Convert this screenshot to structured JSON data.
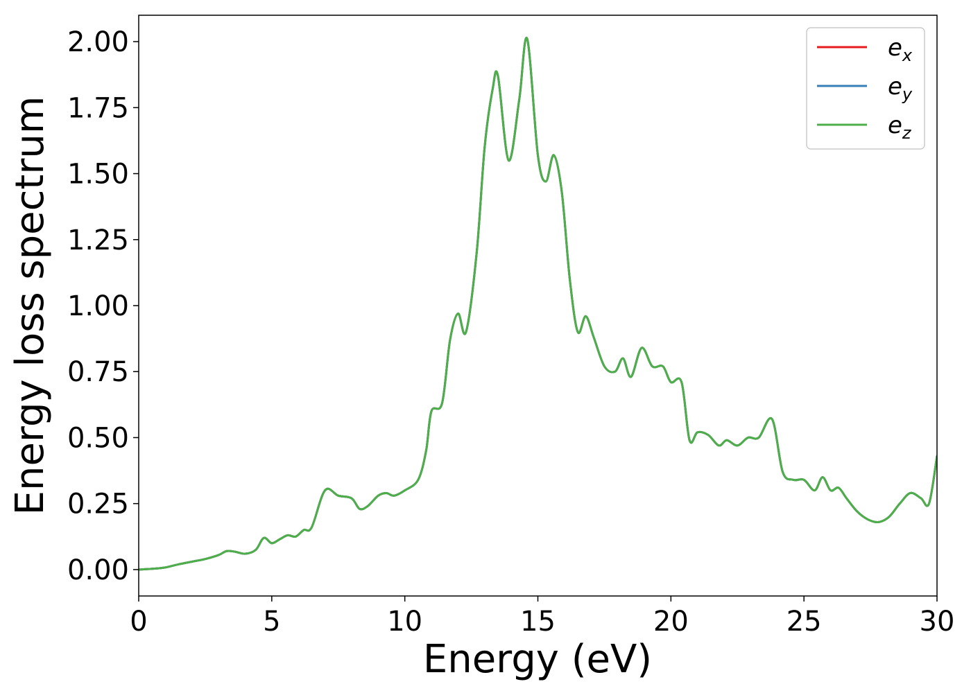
{
  "chart_data": {
    "type": "line",
    "title": "",
    "xlabel": "Energy (eV)",
    "ylabel": "Energy loss spectrum",
    "xlim": [
      0,
      30
    ],
    "ylim": [
      -0.1,
      2.1
    ],
    "xticks": [
      0,
      5,
      10,
      15,
      20,
      25,
      30
    ],
    "xtick_labels": [
      "0",
      "5",
      "10",
      "15",
      "20",
      "25",
      "30"
    ],
    "yticks": [
      0.0,
      0.25,
      0.5,
      0.75,
      1.0,
      1.25,
      1.5,
      1.75,
      2.0
    ],
    "ytick_labels": [
      "0.00",
      "0.25",
      "0.50",
      "0.75",
      "1.00",
      "1.25",
      "1.50",
      "1.75",
      "2.00"
    ],
    "grid": false,
    "legend_position": "top-right",
    "x": [
      0,
      0.5,
      1.0,
      1.5,
      2.0,
      2.5,
      3.0,
      3.3,
      3.6,
      4.0,
      4.4,
      4.7,
      5.0,
      5.3,
      5.6,
      5.9,
      6.2,
      6.5,
      7.0,
      7.5,
      8.0,
      8.3,
      8.6,
      9.0,
      9.3,
      9.6,
      10.0,
      10.5,
      10.8,
      11.0,
      11.4,
      11.7,
      12.0,
      12.3,
      12.7,
      13.0,
      13.3,
      13.5,
      13.9,
      14.3,
      14.6,
      15.0,
      15.3,
      15.6,
      15.9,
      16.2,
      16.5,
      16.8,
      17.1,
      17.5,
      17.9,
      18.2,
      18.5,
      18.9,
      19.3,
      19.7,
      20.0,
      20.4,
      20.7,
      21.0,
      21.4,
      21.8,
      22.1,
      22.5,
      22.9,
      23.3,
      23.8,
      24.2,
      24.6,
      25.0,
      25.4,
      25.7,
      26.0,
      26.3,
      26.6,
      27.0,
      27.4,
      27.8,
      28.2,
      28.6,
      29.0,
      29.4,
      29.7,
      30.0
    ],
    "series": [
      {
        "name": "e_x",
        "color": "#e41a1c",
        "y": [
          0.0,
          0.003,
          0.008,
          0.02,
          0.03,
          0.04,
          0.055,
          0.07,
          0.068,
          0.06,
          0.075,
          0.12,
          0.1,
          0.115,
          0.13,
          0.125,
          0.15,
          0.16,
          0.3,
          0.28,
          0.27,
          0.23,
          0.24,
          0.28,
          0.29,
          0.28,
          0.3,
          0.34,
          0.45,
          0.6,
          0.63,
          0.87,
          0.97,
          0.9,
          1.2,
          1.6,
          1.82,
          1.87,
          1.55,
          1.78,
          2.01,
          1.57,
          1.47,
          1.57,
          1.43,
          1.1,
          0.9,
          0.96,
          0.88,
          0.77,
          0.75,
          0.8,
          0.73,
          0.84,
          0.77,
          0.77,
          0.71,
          0.71,
          0.49,
          0.52,
          0.51,
          0.47,
          0.49,
          0.47,
          0.5,
          0.5,
          0.57,
          0.37,
          0.34,
          0.34,
          0.3,
          0.35,
          0.3,
          0.31,
          0.27,
          0.22,
          0.19,
          0.18,
          0.2,
          0.25,
          0.29,
          0.27,
          0.25,
          0.43
        ]
      },
      {
        "name": "e_y",
        "color": "#377eb8",
        "y": [
          0.0,
          0.003,
          0.008,
          0.02,
          0.03,
          0.04,
          0.055,
          0.07,
          0.068,
          0.06,
          0.075,
          0.12,
          0.1,
          0.115,
          0.13,
          0.125,
          0.15,
          0.16,
          0.3,
          0.28,
          0.27,
          0.23,
          0.24,
          0.28,
          0.29,
          0.28,
          0.3,
          0.34,
          0.45,
          0.6,
          0.63,
          0.87,
          0.97,
          0.9,
          1.2,
          1.6,
          1.82,
          1.87,
          1.55,
          1.78,
          2.01,
          1.57,
          1.47,
          1.57,
          1.43,
          1.1,
          0.9,
          0.96,
          0.88,
          0.77,
          0.75,
          0.8,
          0.73,
          0.84,
          0.77,
          0.77,
          0.71,
          0.71,
          0.49,
          0.52,
          0.51,
          0.47,
          0.49,
          0.47,
          0.5,
          0.5,
          0.57,
          0.37,
          0.34,
          0.34,
          0.3,
          0.35,
          0.3,
          0.31,
          0.27,
          0.22,
          0.19,
          0.18,
          0.2,
          0.25,
          0.29,
          0.27,
          0.25,
          0.43
        ]
      },
      {
        "name": "e_z",
        "color": "#4daf4a",
        "y": [
          0.0,
          0.003,
          0.008,
          0.02,
          0.03,
          0.04,
          0.055,
          0.07,
          0.068,
          0.06,
          0.075,
          0.12,
          0.1,
          0.115,
          0.13,
          0.125,
          0.15,
          0.16,
          0.3,
          0.28,
          0.27,
          0.23,
          0.24,
          0.28,
          0.29,
          0.28,
          0.3,
          0.34,
          0.45,
          0.6,
          0.63,
          0.87,
          0.97,
          0.9,
          1.2,
          1.6,
          1.82,
          1.87,
          1.55,
          1.78,
          2.01,
          1.57,
          1.47,
          1.57,
          1.43,
          1.1,
          0.9,
          0.96,
          0.88,
          0.77,
          0.75,
          0.8,
          0.73,
          0.84,
          0.77,
          0.77,
          0.71,
          0.71,
          0.49,
          0.52,
          0.51,
          0.47,
          0.49,
          0.47,
          0.5,
          0.5,
          0.57,
          0.37,
          0.34,
          0.34,
          0.3,
          0.35,
          0.3,
          0.31,
          0.27,
          0.22,
          0.19,
          0.18,
          0.2,
          0.25,
          0.29,
          0.27,
          0.25,
          0.43
        ]
      }
    ],
    "legend": [
      {
        "base": "e",
        "sub": "x",
        "color": "#e41a1c"
      },
      {
        "base": "e",
        "sub": "y",
        "color": "#377eb8"
      },
      {
        "base": "e",
        "sub": "z",
        "color": "#4daf4a"
      }
    ]
  }
}
